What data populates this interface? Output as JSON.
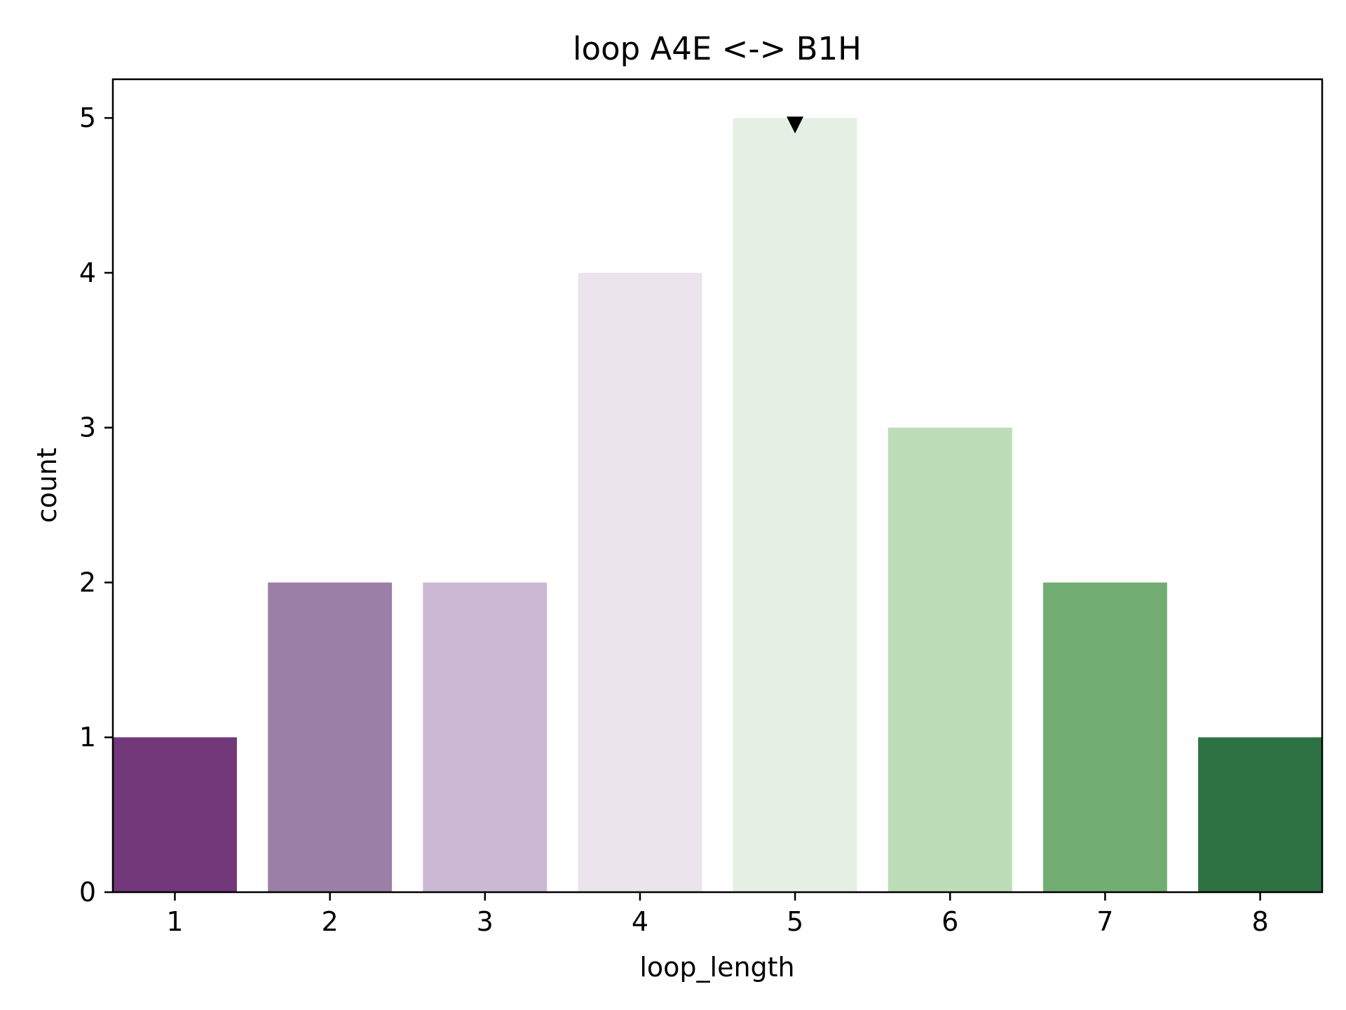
{
  "chart_data": {
    "type": "bar",
    "title": "loop A4E <-> B1H",
    "xlabel": "loop_length",
    "ylabel": "count",
    "categories": [
      "1",
      "2",
      "3",
      "4",
      "5",
      "6",
      "7",
      "8"
    ],
    "values": [
      1,
      2,
      2,
      4,
      5,
      3,
      2,
      1
    ],
    "colors": [
      "#72387a",
      "#9d80a8",
      "#cbb9d4",
      "#ebe4ec",
      "#e5f0e4",
      "#bdddb8",
      "#72ae73",
      "#2e7243"
    ],
    "yticks": [
      "0",
      "1",
      "2",
      "3",
      "4",
      "5"
    ],
    "ylim": [
      0,
      5.25
    ],
    "marker": {
      "category": "5",
      "value": 5,
      "shape": "down-triangle",
      "color": "#000000"
    },
    "grid": false,
    "legend": "none"
  }
}
